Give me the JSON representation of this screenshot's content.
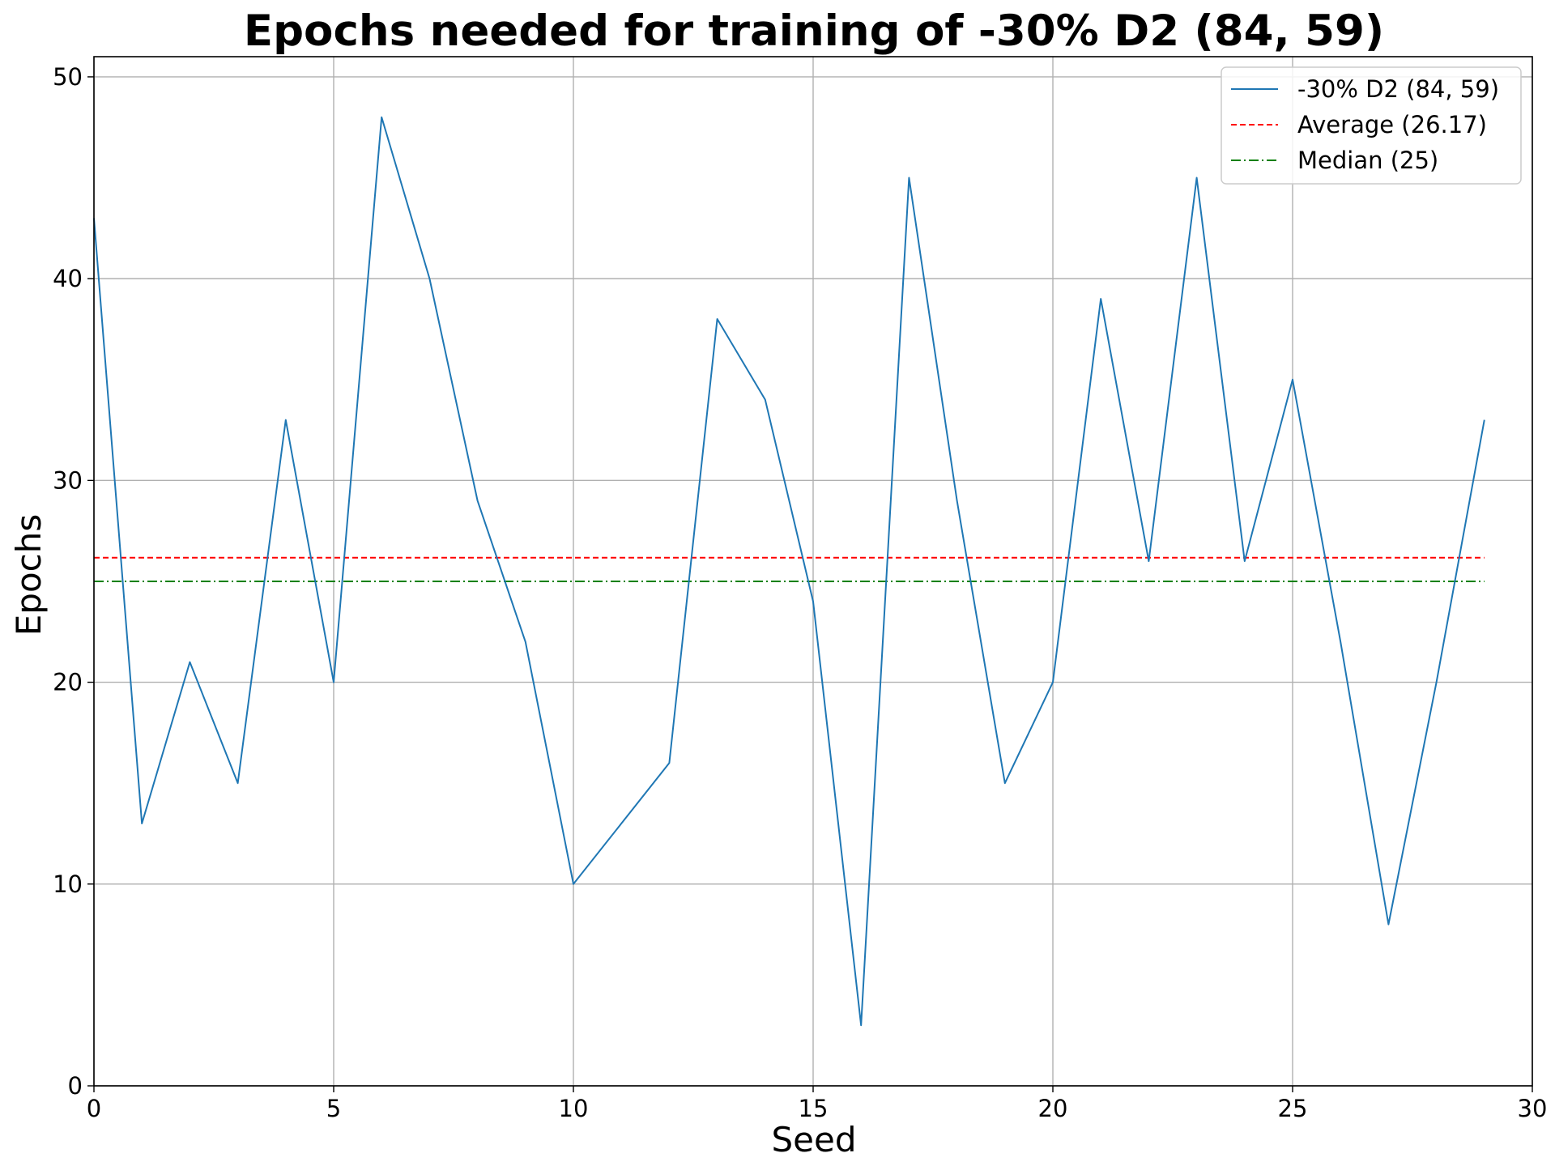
{
  "chart_data": {
    "type": "line",
    "title": "Epochs needed for training of -30% D2 (84, 59)",
    "xlabel": "Seed",
    "ylabel": "Epochs",
    "xlim": [
      0,
      30
    ],
    "ylim": [
      0,
      51
    ],
    "x_ticks": [
      0,
      5,
      10,
      15,
      20,
      25,
      30
    ],
    "y_ticks": [
      0,
      10,
      20,
      30,
      40,
      50
    ],
    "grid": true,
    "legend_position": "top-right",
    "x": [
      0,
      1,
      2,
      3,
      4,
      5,
      6,
      7,
      8,
      9,
      10,
      11,
      12,
      13,
      14,
      15,
      16,
      17,
      18,
      19,
      20,
      21,
      22,
      23,
      24,
      25,
      26,
      27,
      28,
      29
    ],
    "series": [
      {
        "name": "-30% D2 (84, 59)",
        "color": "#1f77b4",
        "style": "solid",
        "values": [
          43,
          13,
          21,
          15,
          33,
          20,
          48,
          40,
          29,
          22,
          10,
          13,
          16,
          38,
          34,
          24,
          3,
          45,
          29,
          15,
          20,
          39,
          26,
          45,
          26,
          35,
          22,
          8,
          20,
          33
        ]
      }
    ],
    "reference_lines": [
      {
        "name": "Average (26.17)",
        "value": 26.17,
        "color": "#ff0000",
        "style": "dashed"
      },
      {
        "name": "Median (25)",
        "value": 25,
        "color": "#008000",
        "style": "dashdot"
      }
    ]
  }
}
